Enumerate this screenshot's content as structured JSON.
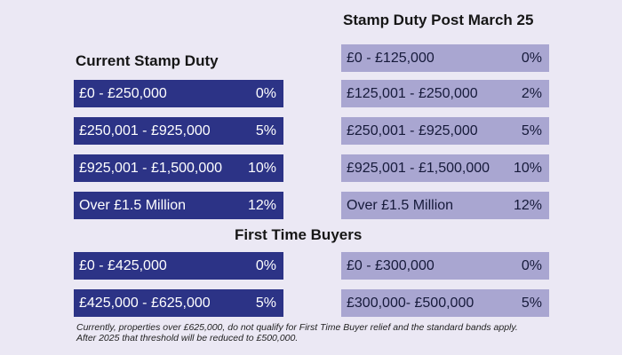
{
  "headings": {
    "current": "Current Stamp Duty",
    "post": "Stamp Duty Post March 25",
    "first_time_buyers": "First Time Buyers"
  },
  "current_bands": [
    {
      "range": "£0 - £250,000",
      "rate": "0%"
    },
    {
      "range": "£250,001 - £925,000",
      "rate": "5%"
    },
    {
      "range": "£925,001 - £1,500,000",
      "rate": "10%"
    },
    {
      "range": "Over £1.5 Million",
      "rate": "12%"
    }
  ],
  "post_bands": [
    {
      "range": "£0 - £125,000",
      "rate": "0%"
    },
    {
      "range": "£125,001 - £250,000",
      "rate": "2%"
    },
    {
      "range": "£250,001 - £925,000",
      "rate": "5%"
    },
    {
      "range": "£925,001 - £1,500,000",
      "rate": "10%"
    },
    {
      "range": "Over £1.5 Million",
      "rate": "12%"
    }
  ],
  "ftb_current": [
    {
      "range": "£0 - £425,000",
      "rate": "0%"
    },
    {
      "range": "£425,000 - £625,000",
      "rate": "5%"
    }
  ],
  "ftb_post": [
    {
      "range": "£0 - £300,000",
      "rate": "0%"
    },
    {
      "range": "£300,000- £500,000",
      "rate": "5%"
    }
  ],
  "footnote": {
    "line1": "Currently, properties over £625,000, do not qualify for First Time Buyer relief and the standard bands apply.",
    "line2": "After 2025 that threshold will be reduced to £500,000."
  },
  "colors": {
    "background": "#ebe8f4",
    "current_band": "#2c3386",
    "post_band": "#a9a6d1"
  }
}
